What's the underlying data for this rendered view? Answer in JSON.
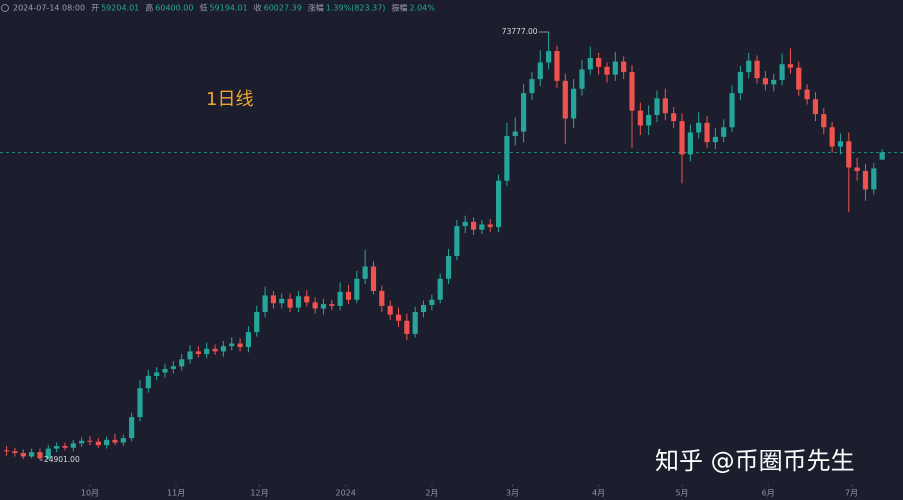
{
  "chart_data": {
    "type": "candlestick",
    "header": {
      "time": "2024-07-14 08:00",
      "fields": [
        {
          "label": "开",
          "value": "59204.01"
        },
        {
          "label": "高",
          "value": "60400.00"
        },
        {
          "label": "低",
          "value": "59194.01"
        },
        {
          "label": "收",
          "value": "60027.39"
        },
        {
          "label": "涨幅",
          "value": "1.39%(823.37)"
        },
        {
          "label": "振幅",
          "value": "2.04%"
        }
      ]
    },
    "annotation": "1日线",
    "watermark": "知乎 @币圈币先生",
    "up_color": "#26a69a",
    "down_color": "#ef5350",
    "xlim": [
      -0.79,
      107.5
    ],
    "ylim": [
      20333,
      77431
    ],
    "xticks": [
      {
        "value": 10,
        "label": "10月"
      },
      {
        "value": 20.33,
        "label": "11月"
      },
      {
        "value": 30.33,
        "label": "12月"
      },
      {
        "value": 40.67,
        "label": "2024"
      },
      {
        "value": 51,
        "label": "2月"
      },
      {
        "value": 60.67,
        "label": "3月"
      },
      {
        "value": 71,
        "label": "4月"
      },
      {
        "value": 81,
        "label": "5月"
      },
      {
        "value": 91.33,
        "label": "6月"
      },
      {
        "value": 101.33,
        "label": "7月"
      }
    ],
    "extremes": [
      {
        "value": 73777,
        "label": "73777.00"
      },
      {
        "value": 24901,
        "label": "24901.00"
      }
    ],
    "open": [
      26000,
      25900,
      25700,
      25300,
      25800,
      25100,
      26200,
      26500,
      26300,
      26800,
      27100,
      27000,
      26600,
      27200,
      26900,
      27400,
      29800,
      33100,
      34500,
      34900,
      35300,
      35600,
      36400,
      37300,
      37000,
      37600,
      37300,
      37900,
      38200,
      37800,
      39500,
      41800,
      43700,
      42800,
      43300,
      42300,
      43600,
      42900,
      42200,
      42700,
      42500,
      44100,
      43200,
      45600,
      47000,
      44200,
      42500,
      41500,
      40800,
      39300,
      41800,
      42600,
      43200,
      45600,
      48200,
      51600,
      52100,
      51200,
      51800,
      51500,
      56800,
      61900,
      62400,
      66800,
      68400,
      70300,
      71600,
      68200,
      63900,
      67300,
      69500,
      70800,
      69800,
      68900,
      70400,
      69200,
      64800,
      63100,
      64300,
      66200,
      64500,
      63600,
      59800,
      62300,
      63400,
      61200,
      61800,
      62900,
      66800,
      69200,
      70500,
      68500,
      67800,
      68300,
      70100,
      69700,
      67200,
      66100,
      64400,
      62900,
      60700,
      61300,
      58300,
      57900,
      55800,
      59204.01
    ],
    "high": [
      26500,
      26300,
      26100,
      26200,
      26200,
      26600,
      26900,
      26900,
      27200,
      27500,
      27600,
      27400,
      27600,
      27900,
      27800,
      30300,
      34000,
      35200,
      35500,
      35900,
      36200,
      37000,
      38000,
      37900,
      38300,
      38100,
      38500,
      38900,
      38800,
      40200,
      42500,
      44700,
      44200,
      43900,
      43900,
      44200,
      44300,
      43500,
      43300,
      43200,
      45200,
      44900,
      46500,
      48900,
      47600,
      44800,
      43100,
      42300,
      41600,
      42400,
      43100,
      43800,
      46200,
      49000,
      52300,
      52800,
      52600,
      52300,
      52400,
      57500,
      63400,
      64000,
      67800,
      69200,
      71700,
      73777,
      72200,
      69000,
      68400,
      70600,
      72100,
      71400,
      70300,
      71500,
      71000,
      70000,
      65700,
      65400,
      67100,
      67300,
      65200,
      64500,
      63200,
      64600,
      64200,
      62800,
      63800,
      67700,
      69900,
      71400,
      71100,
      69300,
      69000,
      71300,
      71900,
      70400,
      67800,
      66900,
      65100,
      63500,
      62200,
      62300,
      59400,
      58700,
      58800,
      60400
    ],
    "low": [
      25400,
      25300,
      25000,
      25100,
      24901,
      24950,
      25800,
      26000,
      25900,
      26400,
      26600,
      26300,
      26200,
      26600,
      26500,
      27000,
      29300,
      32600,
      34000,
      34300,
      34800,
      35100,
      35900,
      36600,
      36500,
      36900,
      36700,
      37400,
      37300,
      37200,
      39000,
      41200,
      42200,
      42200,
      41800,
      41800,
      42400,
      41600,
      41500,
      42000,
      42000,
      42700,
      42800,
      45000,
      43800,
      41800,
      40900,
      40100,
      38600,
      38900,
      41200,
      42000,
      42800,
      45000,
      47700,
      50800,
      50600,
      50700,
      50900,
      50900,
      56200,
      60800,
      61200,
      66000,
      67600,
      69500,
      67400,
      61000,
      62800,
      66500,
      68900,
      68900,
      68000,
      68200,
      68400,
      60500,
      62000,
      62000,
      63500,
      63700,
      62800,
      56500,
      59000,
      61600,
      60500,
      60400,
      61200,
      62400,
      66000,
      68500,
      67900,
      67100,
      67000,
      67700,
      69000,
      66500,
      65500,
      63600,
      62100,
      60000,
      59800,
      53200,
      56800,
      54500,
      55200,
      59194.01
    ],
    "close": [
      25900,
      25700,
      25300,
      25800,
      25100,
      26200,
      26500,
      26300,
      26800,
      27100,
      27000,
      26600,
      27200,
      26900,
      27400,
      29800,
      33100,
      34500,
      34900,
      35300,
      35600,
      36400,
      37300,
      37000,
      37600,
      37300,
      37900,
      38200,
      37800,
      39500,
      41800,
      43700,
      42800,
      43300,
      42300,
      43600,
      42900,
      42200,
      42700,
      42500,
      44100,
      43200,
      45600,
      47000,
      44200,
      42500,
      41500,
      40800,
      39300,
      41800,
      42600,
      43200,
      45600,
      48200,
      51600,
      52100,
      51200,
      51800,
      51500,
      56800,
      61900,
      62400,
      66800,
      68400,
      70300,
      71600,
      68200,
      63900,
      67300,
      69500,
      70800,
      69800,
      68900,
      70400,
      69200,
      64800,
      63100,
      64300,
      66200,
      64500,
      63600,
      59800,
      62300,
      63400,
      61200,
      61800,
      62900,
      66800,
      69200,
      70500,
      68500,
      67800,
      68300,
      70100,
      69700,
      67200,
      66100,
      64400,
      62900,
      60700,
      61300,
      58300,
      57900,
      55800,
      58200,
      60027.39
    ]
  }
}
